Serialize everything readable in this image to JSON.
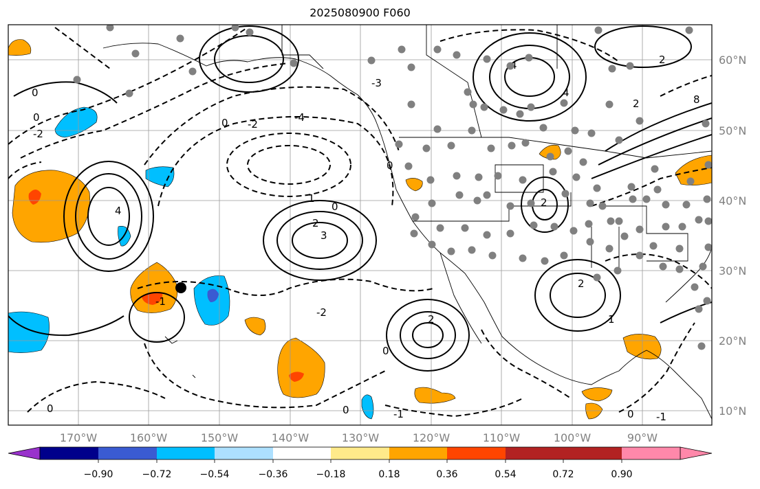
{
  "title": "2025080900 F060",
  "lon_labels": [
    "170°W",
    "160°W",
    "150°W",
    "140°W",
    "130°W",
    "120°W",
    "110°W",
    "100°W",
    "90°W"
  ],
  "lat_labels": [
    "60°N",
    "50°N",
    "40°N",
    "30°N",
    "20°N",
    "10°N"
  ],
  "colorbar": {
    "ticks": [
      "−0.90",
      "−0.72",
      "−0.54",
      "−0.36",
      "−0.18",
      "0.18",
      "0.36",
      "0.54",
      "0.72",
      "0.90"
    ],
    "colors": [
      "#9932CC",
      "#00008B",
      "#3A5BD2",
      "#00BFFF",
      "#ADE0FF",
      "#FFFFFF",
      "#FFEA8A",
      "#FFA500",
      "#FF4500",
      "#B22222",
      "#FF88AA"
    ]
  },
  "contour_labels": [
    "0",
    "2",
    "-2",
    "4",
    "-4",
    "-3",
    "3",
    "1",
    "-1",
    "8"
  ]
}
